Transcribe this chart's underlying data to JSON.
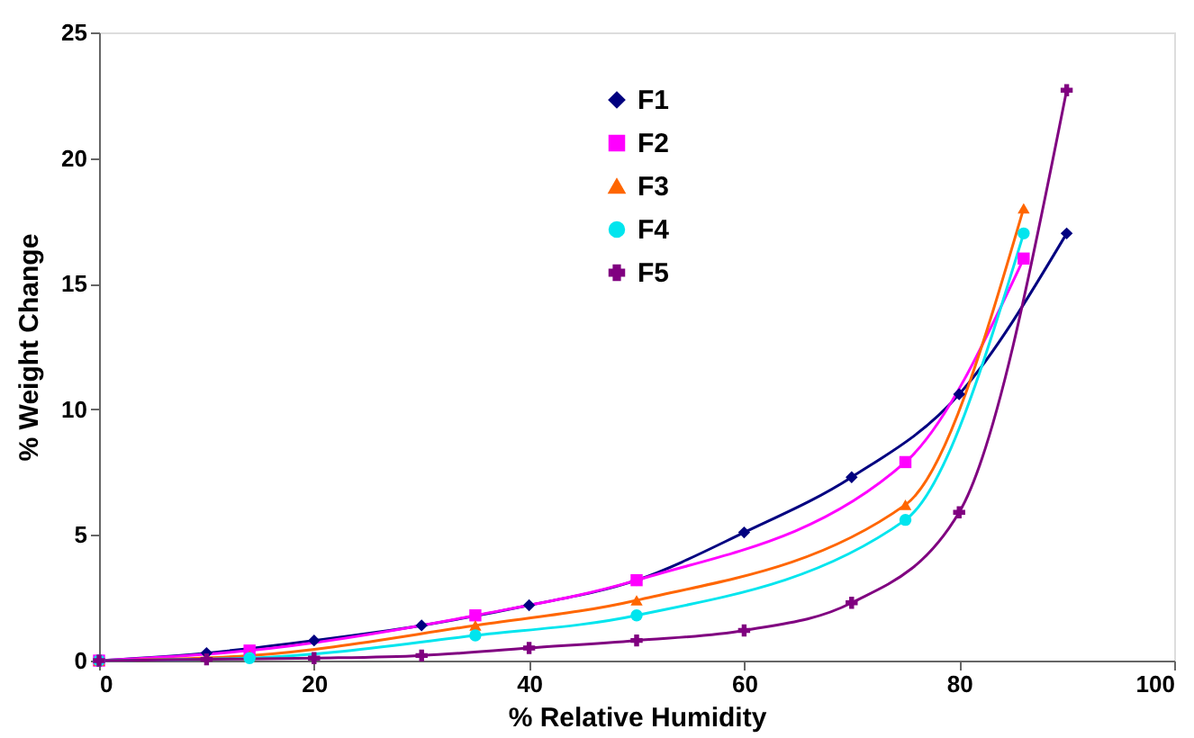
{
  "chart_data": {
    "type": "line",
    "xlabel": "% Relative Humidity",
    "ylabel": "% Weight Change",
    "xlim": [
      0,
      100
    ],
    "ylim": [
      0,
      25
    ],
    "xticks": [
      0,
      20,
      40,
      60,
      80,
      100
    ],
    "yticks": [
      0,
      5,
      10,
      15,
      20,
      25
    ],
    "grid": false,
    "legend": "top",
    "line_style": "solid",
    "series": [
      {
        "name": "F1",
        "color": "#000080",
        "marker": "diamond",
        "x": [
          0,
          10,
          20,
          30,
          40,
          50,
          60,
          70,
          80,
          90
        ],
        "values": [
          0,
          0.3,
          0.8,
          1.4,
          2.2,
          3.2,
          5.1,
          7.3,
          10.6,
          17.0
        ]
      },
      {
        "name": "F2",
        "color": "#ff00ff",
        "marker": "square",
        "x": [
          0,
          14,
          35,
          50,
          75,
          86
        ],
        "values": [
          0,
          0.4,
          1.8,
          3.2,
          7.9,
          16.0
        ]
      },
      {
        "name": "F3",
        "color": "#ff6600",
        "marker": "triangle",
        "x": [
          0,
          14,
          35,
          50,
          75,
          86
        ],
        "values": [
          0,
          0.2,
          1.4,
          2.4,
          6.2,
          18.0
        ]
      },
      {
        "name": "F4",
        "color": "#00e5ee",
        "marker": "circle",
        "x": [
          0,
          14,
          35,
          50,
          75,
          86
        ],
        "values": [
          0,
          0.1,
          1.0,
          1.8,
          5.6,
          17.0
        ]
      },
      {
        "name": "F5",
        "color": "#800080",
        "marker": "cross",
        "x": [
          0,
          10,
          20,
          30,
          40,
          50,
          60,
          70,
          80,
          90
        ],
        "values": [
          0,
          0.05,
          0.1,
          0.2,
          0.5,
          0.8,
          1.2,
          2.3,
          5.9,
          22.7
        ]
      }
    ]
  }
}
